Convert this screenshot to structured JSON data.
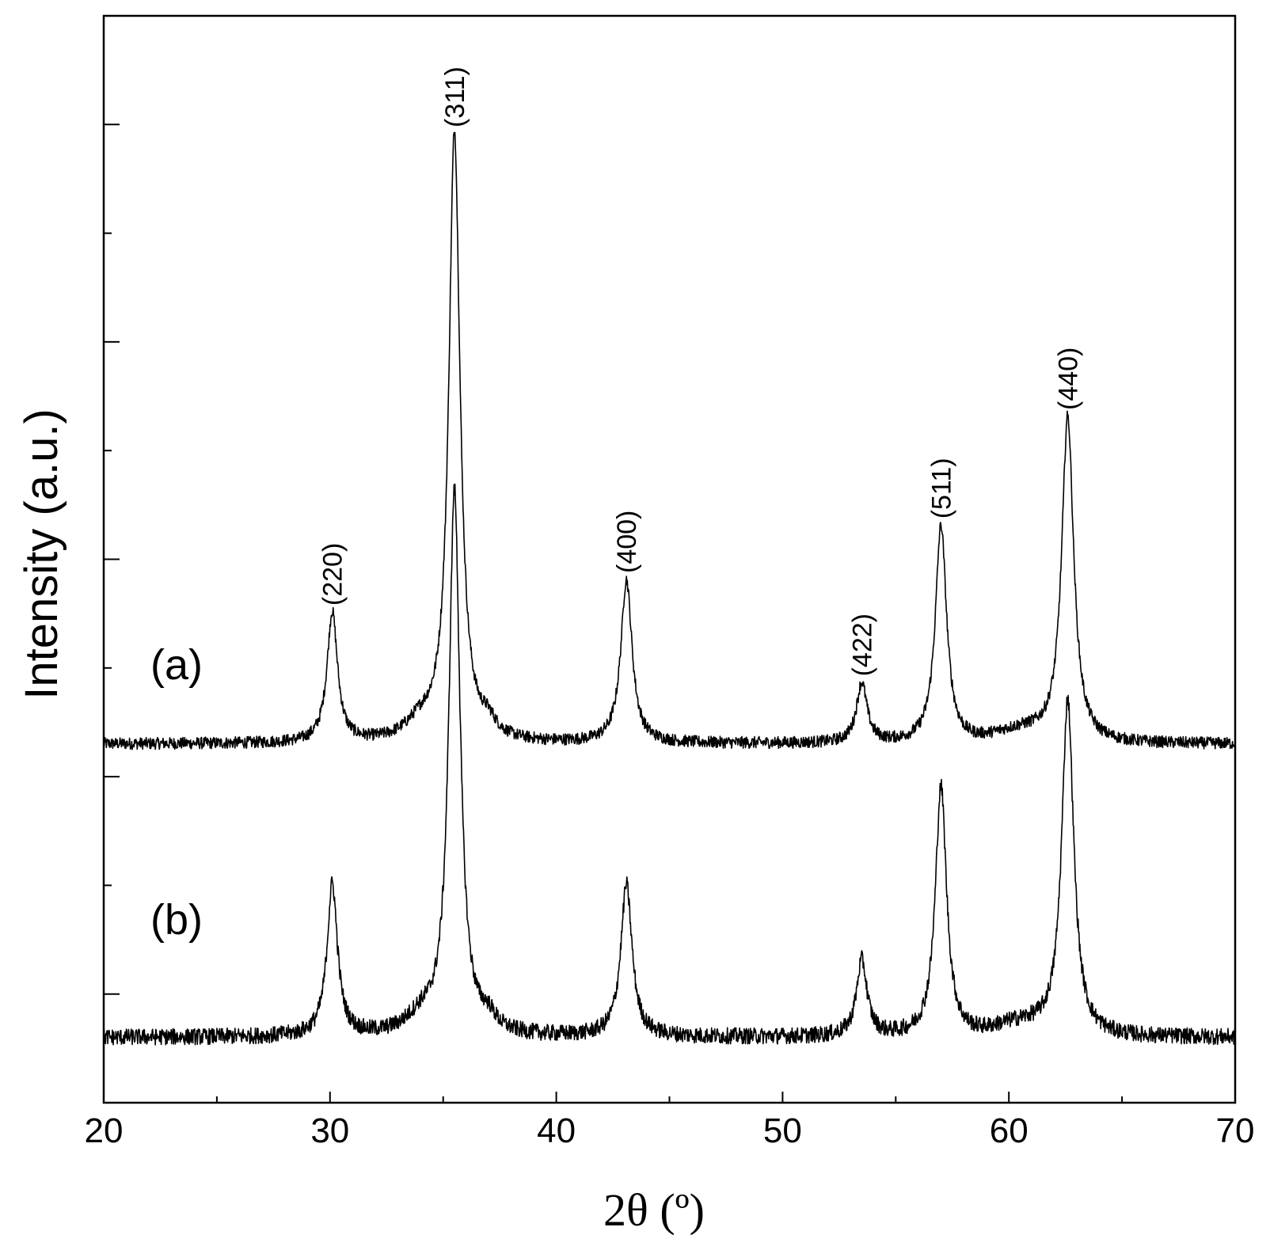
{
  "chart_data": {
    "type": "line",
    "title": "",
    "xlabel": "2θ  (º)",
    "ylabel": "Intensity (a.u.)",
    "xlim": [
      20,
      70
    ],
    "ylim": [
      0,
      10
    ],
    "x_ticks": [
      20,
      30,
      40,
      50,
      60,
      70
    ],
    "y_tick_labels": "none",
    "grid": false,
    "legend": "none",
    "peaks": [
      {
        "label": "(220)",
        "x": 30.1
      },
      {
        "label": "(311)",
        "x": 35.5
      },
      {
        "label": "(400)",
        "x": 43.1
      },
      {
        "label": "(422)",
        "x": 53.5
      },
      {
        "label": "(511)",
        "x": 57.0
      },
      {
        "label": "(440)",
        "x": 62.6
      }
    ],
    "series": [
      {
        "name": "(a)",
        "baseline": 3.3,
        "peaks": [
          {
            "x": 30.1,
            "height": 1.2
          },
          {
            "x": 35.5,
            "height": 5.6
          },
          {
            "x": 43.1,
            "height": 1.5
          },
          {
            "x": 53.5,
            "height": 0.55
          },
          {
            "x": 57.0,
            "height": 2.0
          },
          {
            "x": 62.6,
            "height": 3.0
          }
        ]
      },
      {
        "name": "(b)",
        "baseline": 0.6,
        "peaks": [
          {
            "x": 30.1,
            "height": 1.4
          },
          {
            "x": 35.5,
            "height": 5.0
          },
          {
            "x": 43.1,
            "height": 1.4
          },
          {
            "x": 53.5,
            "height": 0.7
          },
          {
            "x": 57.0,
            "height": 2.3
          },
          {
            "x": 62.6,
            "height": 3.1
          }
        ]
      }
    ]
  }
}
